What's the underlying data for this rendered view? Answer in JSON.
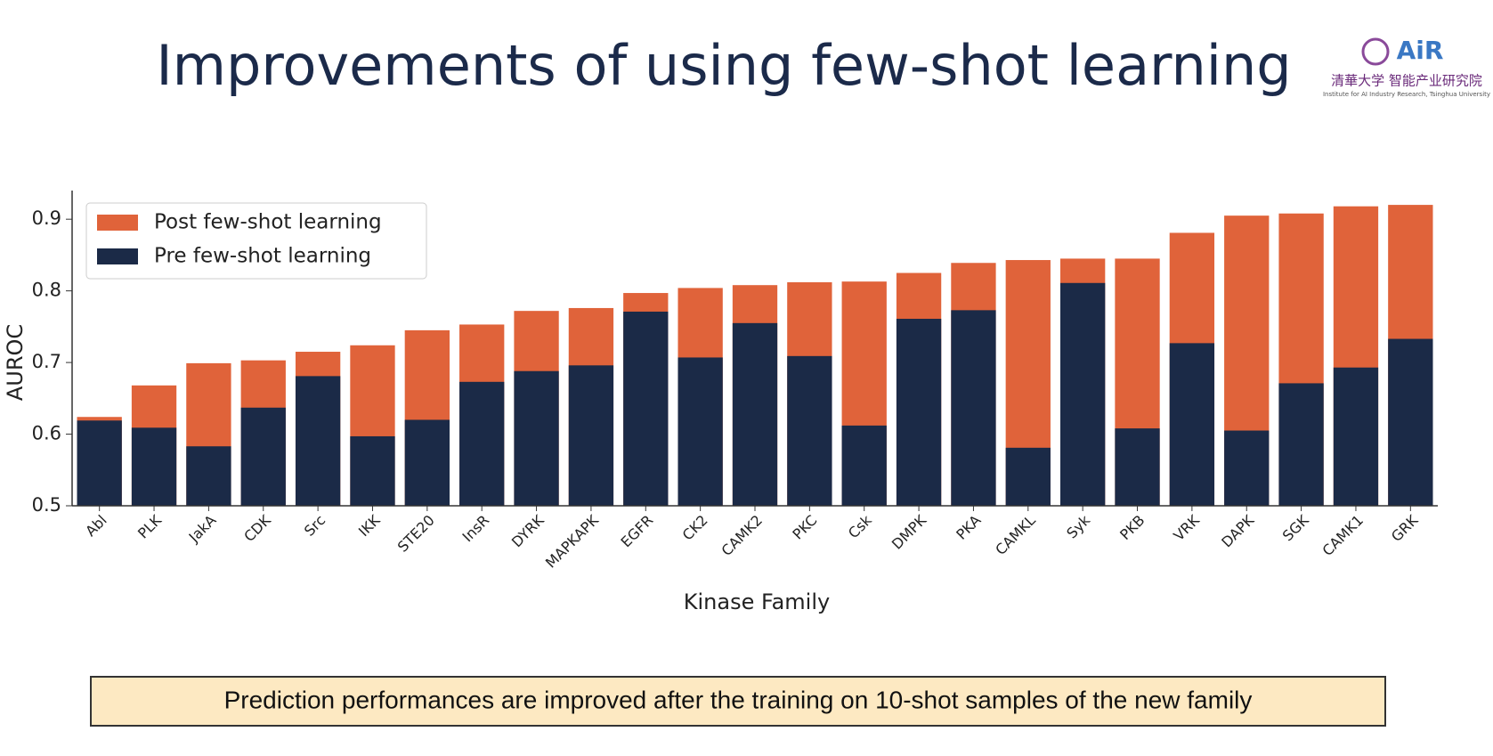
{
  "title": "Improvements of using few-shot learning",
  "logo": {
    "mark": "AiR",
    "name": "清華大学 智能产业研究院",
    "subtitle": "Institute for AI Industry Research, Tsinghua University"
  },
  "banner": "Prediction performances are improved after the training on 10-shot samples of the new family",
  "chart_data": {
    "type": "bar",
    "x_label": "Kinase Family",
    "y_label": "AUROC",
    "categories": [
      "Abl",
      "PLK",
      "JakA",
      "CDK",
      "Src",
      "IKK",
      "STE20",
      "InsR",
      "DYRK",
      "MAPKAPK",
      "EGFR",
      "CK2",
      "CAMK2",
      "PKC",
      "Csk",
      "DMPK",
      "PKA",
      "CAMKL",
      "Syk",
      "PKB",
      "VRK",
      "DAPK",
      "SGK",
      "CAMK1",
      "GRK"
    ],
    "series": [
      {
        "name": "Post few-shot learning",
        "color": "#e0633a",
        "values": [
          0.624,
          0.668,
          0.699,
          0.703,
          0.715,
          0.724,
          0.745,
          0.753,
          0.772,
          0.776,
          0.797,
          0.804,
          0.808,
          0.812,
          0.813,
          0.825,
          0.839,
          0.843,
          0.845,
          0.845,
          0.881,
          0.905,
          0.908,
          0.918,
          0.92
        ]
      },
      {
        "name": "Pre few-shot learning",
        "color": "#1b2a47",
        "values": [
          0.619,
          0.609,
          0.583,
          0.637,
          0.681,
          0.597,
          0.62,
          0.673,
          0.688,
          0.696,
          0.771,
          0.707,
          0.755,
          0.709,
          0.612,
          0.761,
          0.773,
          0.581,
          0.811,
          0.608,
          0.727,
          0.605,
          0.671,
          0.693,
          0.733
        ]
      }
    ],
    "ylim": [
      0.5,
      0.94
    ],
    "yticks": [
      0.5,
      0.6,
      0.7,
      0.8,
      0.9
    ],
    "grid": false,
    "legend": "upper left"
  }
}
